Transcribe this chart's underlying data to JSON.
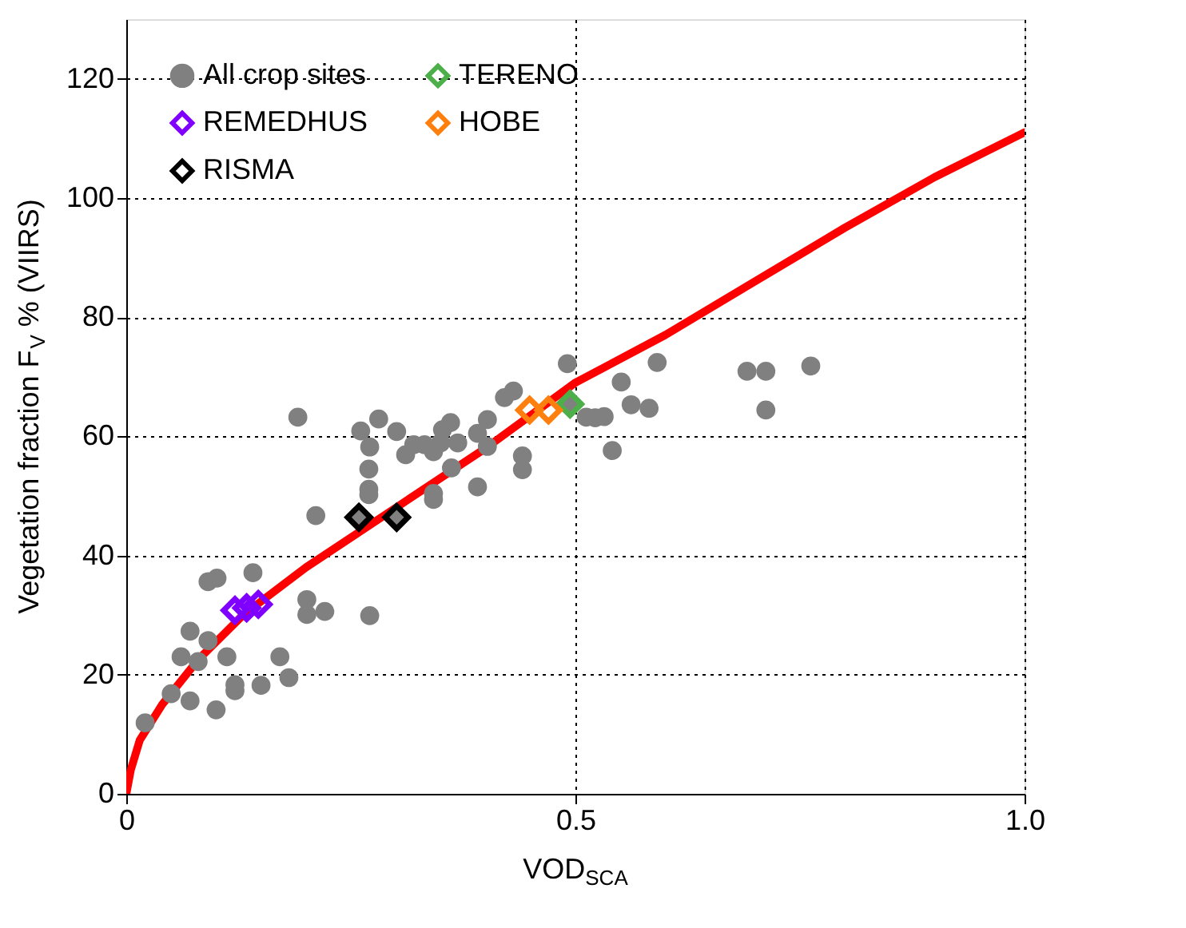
{
  "chart_data": {
    "type": "scatter",
    "xlabel": "VOD$_{SCA}$",
    "ylabel": "Vegetation fraction F$_{V}$ % (VIIRS)",
    "xlim": [
      0,
      1.0
    ],
    "xticks": [
      0,
      0.5,
      {
        "value": 1.0,
        "label": "1.0"
      }
    ],
    "ylim": [
      0,
      130
    ],
    "yticks": [
      0,
      20,
      40,
      60,
      80,
      100,
      120
    ],
    "grid": true,
    "legend": "top left",
    "series": [
      {
        "name": "All crop sites",
        "color": "#808080",
        "marker": "circle",
        "x": [
          0.021,
          0.05,
          0.071,
          0.1,
          0.061,
          0.071,
          0.08,
          0.091,
          0.112,
          0.091,
          0.101,
          0.141,
          0.121,
          0.121,
          0.15,
          0.171,
          0.181,
          0.201,
          0.201,
          0.221,
          0.271,
          0.191,
          0.211,
          0.261,
          0.281,
          0.301,
          0.271,
          0.27,
          0.27,
          0.27,
          0.259,
          0.301,
          0.311,
          0.32,
          0.332,
          0.342,
          0.35,
          0.352,
          0.361,
          0.362,
          0.342,
          0.342,
          0.369,
          0.391,
          0.402,
          0.402,
          0.391,
          0.421,
          0.431,
          0.441,
          0.441,
          0.491,
          0.492,
          0.512,
          0.522,
          0.532,
          0.551,
          0.562,
          0.541,
          0.582,
          0.591,
          0.691,
          0.712,
          0.712,
          0.762
        ],
        "values": [
          11.9,
          16.8,
          15.6,
          14.1,
          23.0,
          27.3,
          22.2,
          25.7,
          23.0,
          35.6,
          36.2,
          37.1,
          18.3,
          17.3,
          18.2,
          23.0,
          19.5,
          32.6,
          30.1,
          30.6,
          29.9,
          63.2,
          46.7,
          60.9,
          62.9,
          60.8,
          58.2,
          54.5,
          51.1,
          50.2,
          46.7,
          46.4,
          56.9,
          58.6,
          58.6,
          57.4,
          58.9,
          61.1,
          62.3,
          54.7,
          50.4,
          49.4,
          58.9,
          60.5,
          62.8,
          58.3,
          51.5,
          66.5,
          67.6,
          56.7,
          54.4,
          72.2,
          65.4,
          63.2,
          63.1,
          63.3,
          69.1,
          65.3,
          57.6,
          64.7,
          72.4,
          70.9,
          70.9,
          64.4,
          71.8
        ]
      },
      {
        "name": "REMEDHUS",
        "color": "#8000ff",
        "marker": "diamond",
        "x": [
          0.121,
          0.134,
          0.147
        ],
        "values": [
          30.8,
          31.2,
          31.8
        ]
      },
      {
        "name": "RISMA",
        "color": "#000000",
        "marker": "diamond",
        "x": [
          0.259,
          0.301
        ],
        "values": [
          46.4,
          46.4
        ]
      },
      {
        "name": "TERENO",
        "color": "#4daf4a",
        "marker": "diamond",
        "x": [
          0.494
        ],
        "values": [
          65.4
        ]
      },
      {
        "name": "HOBE",
        "color": "#ff7f0e",
        "marker": "diamond",
        "x": [
          0.449,
          0.47
        ],
        "values": [
          64.4,
          64.4
        ]
      },
      {
        "type": "line",
        "color": "#ff0000",
        "x": [
          0,
          0.005,
          0.015,
          0.04,
          0.08,
          0.13,
          0.2,
          0.3,
          0.4,
          0.5,
          0.6,
          0.7,
          0.8,
          0.9,
          1.0
        ],
        "values": [
          0,
          4,
          9,
          15,
          22.5,
          30,
          38,
          48,
          58,
          69,
          77,
          86,
          95,
          103.5,
          111
        ]
      }
    ]
  }
}
